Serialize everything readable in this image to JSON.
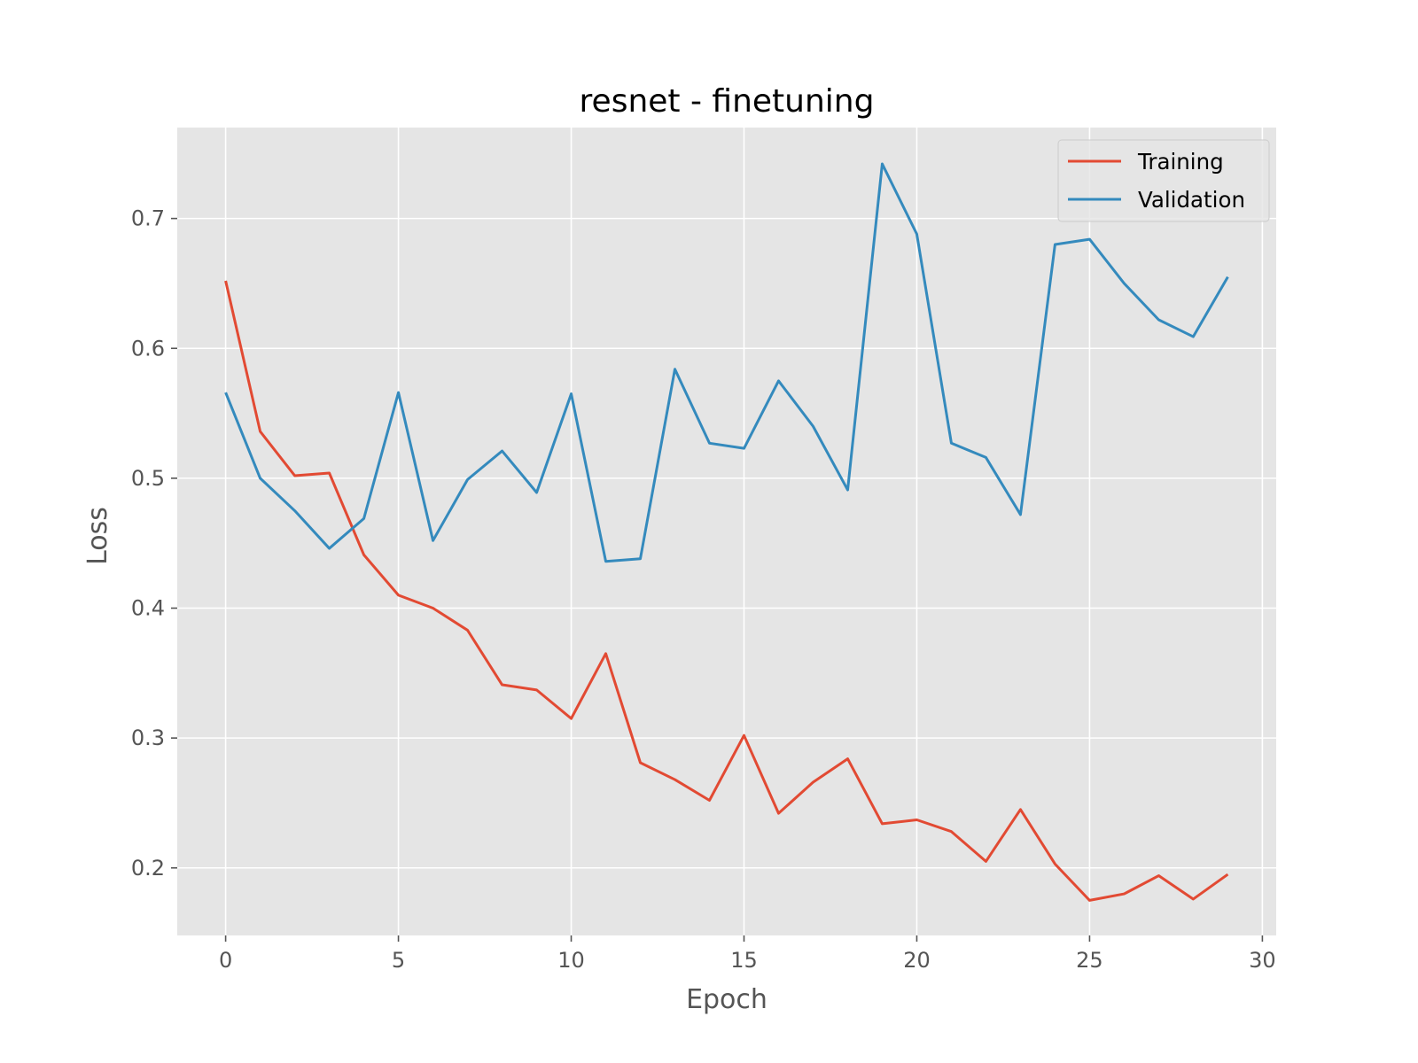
{
  "chart_data": {
    "type": "line",
    "title": "resnet - finetuning",
    "xlabel": "Epoch",
    "ylabel": "Loss",
    "xlim": [
      -1.4,
      30.4
    ],
    "ylim": [
      0.148,
      0.77
    ],
    "xticks": [
      0,
      5,
      10,
      15,
      20,
      25,
      30
    ],
    "yticks": [
      0.2,
      0.3,
      0.4,
      0.5,
      0.6,
      0.7
    ],
    "xtick_labels": [
      "0",
      "5",
      "10",
      "15",
      "20",
      "25",
      "30"
    ],
    "ytick_labels": [
      "0.2",
      "0.3",
      "0.4",
      "0.5",
      "0.6",
      "0.7"
    ],
    "grid": true,
    "legend_position": "top-right",
    "background_color": "#e5e5e5",
    "x": [
      0,
      1,
      2,
      3,
      4,
      5,
      6,
      7,
      8,
      9,
      10,
      11,
      12,
      13,
      14,
      15,
      16,
      17,
      18,
      19,
      20,
      21,
      22,
      23,
      24,
      25,
      26,
      27,
      28,
      29
    ],
    "series": [
      {
        "name": "Training",
        "color": "#e24a33",
        "values": [
          0.652,
          0.536,
          0.502,
          0.504,
          0.441,
          0.41,
          0.4,
          0.383,
          0.341,
          0.337,
          0.315,
          0.365,
          0.281,
          0.268,
          0.252,
          0.302,
          0.242,
          0.266,
          0.284,
          0.234,
          0.237,
          0.228,
          0.205,
          0.245,
          0.203,
          0.175,
          0.18,
          0.194,
          0.176,
          0.195
        ]
      },
      {
        "name": "Validation",
        "color": "#348abd",
        "values": [
          0.566,
          0.5,
          0.475,
          0.446,
          0.469,
          0.566,
          0.452,
          0.499,
          0.521,
          0.489,
          0.565,
          0.436,
          0.438,
          0.584,
          0.527,
          0.523,
          0.575,
          0.54,
          0.491,
          0.742,
          0.688,
          0.527,
          0.516,
          0.472,
          0.68,
          0.684,
          0.65,
          0.622,
          0.609,
          0.655
        ]
      }
    ]
  }
}
